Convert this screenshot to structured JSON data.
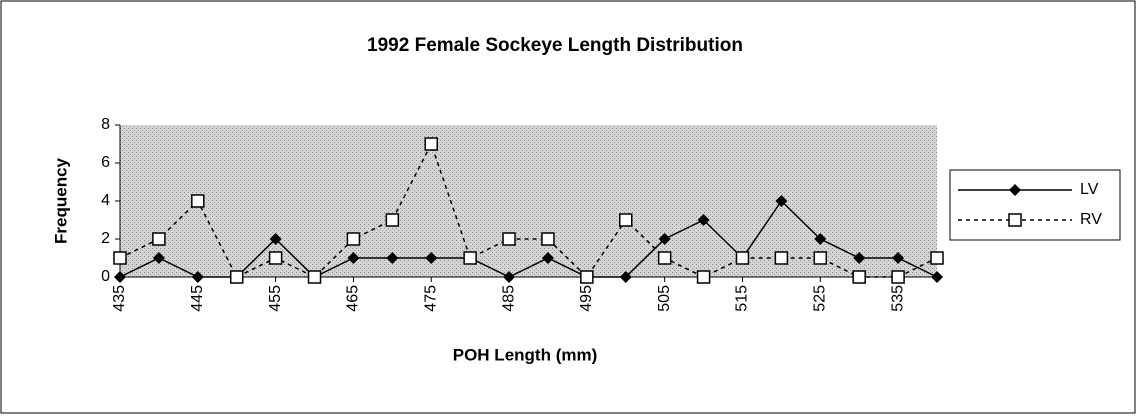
{
  "chart_data": {
    "type": "line",
    "title": "1992 Female Sockeye Length Distribution",
    "x_label": "POH Length (mm)",
    "y_label": "Frequency",
    "x": [
      435,
      440,
      445,
      450,
      455,
      460,
      465,
      470,
      475,
      480,
      485,
      490,
      495,
      500,
      505,
      510,
      515,
      520,
      525,
      530,
      535,
      540
    ],
    "series": [
      {
        "name": "LV",
        "color": "#000000",
        "line_style": "solid",
        "marker": "diamond",
        "values": [
          0,
          1,
          0,
          0,
          2,
          0,
          1,
          1,
          1,
          1,
          0,
          1,
          0,
          0,
          2,
          3,
          1,
          4,
          2,
          1,
          1,
          0
        ]
      },
      {
        "name": "RV",
        "color": "#000000",
        "line_style": "dashed",
        "marker": "square",
        "values": [
          1,
          2,
          4,
          0,
          1,
          0,
          2,
          3,
          7,
          1,
          2,
          2,
          0,
          3,
          1,
          0,
          1,
          1,
          1,
          0,
          0,
          1
        ]
      }
    ],
    "xlim": [
      435,
      540
    ],
    "xticks": [
      435,
      445,
      455,
      465,
      475,
      485,
      495,
      505,
      515,
      525,
      535
    ],
    "ylim": [
      0,
      8
    ],
    "yticks": [
      0,
      2,
      4,
      6,
      8
    ],
    "grid": false,
    "legend": "right"
  }
}
